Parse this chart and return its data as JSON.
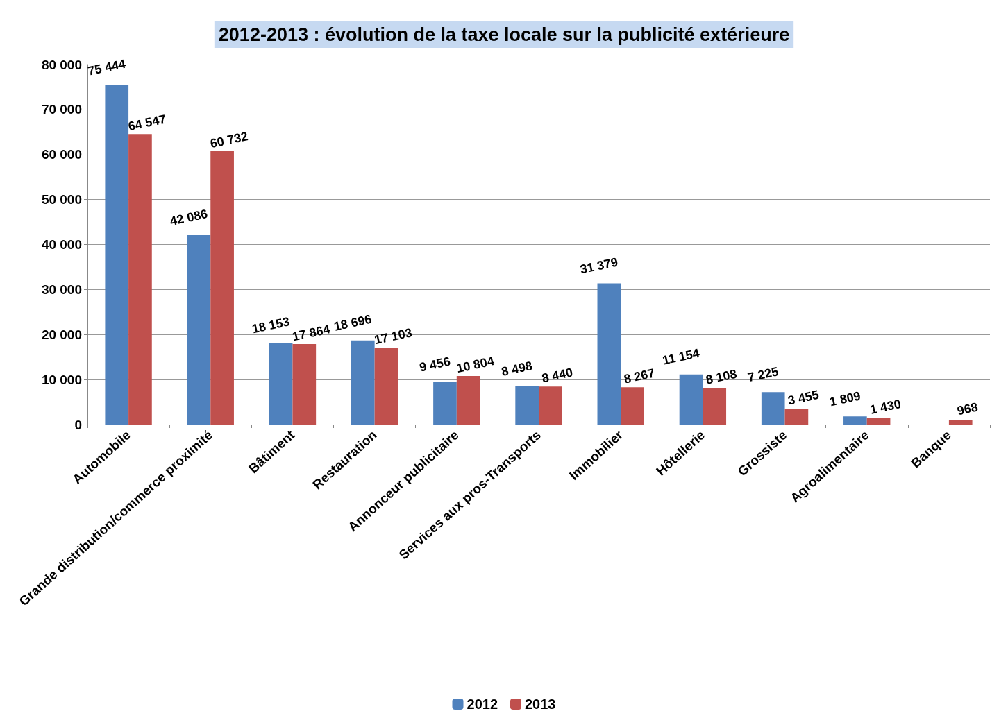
{
  "chart_data": {
    "type": "bar",
    "title": "2012-2013 : évolution de la taxe locale sur la publicité extérieure",
    "categories": [
      "Automobile",
      "Grande distribution/commerce proximité",
      "Bâtiment",
      "Restauration",
      "Annonceur publicitaire",
      "Services aux pros-Transports",
      "Immobilier",
      "Hôtellerie",
      "Grossiste",
      "Agroalimentaire",
      "Banque"
    ],
    "series": [
      {
        "name": "2012",
        "color": "#4f81bd",
        "values": [
          75444,
          42086,
          18153,
          18696,
          9456,
          8498,
          31379,
          11154,
          7225,
          1809,
          null
        ],
        "value_labels": [
          "75 444",
          "42 086",
          "18 153",
          "18 696",
          "9 456",
          "8 498",
          "31 379",
          "11 154",
          "7 225",
          "1 809",
          null
        ]
      },
      {
        "name": "2013",
        "color": "#c0504d",
        "values": [
          64547,
          60732,
          17864,
          17103,
          10804,
          8440,
          8267,
          8108,
          3455,
          1430,
          968
        ],
        "value_labels": [
          "64 547",
          "60 732",
          "17 864",
          "17 103",
          "10 804",
          "8 440",
          "8 267",
          "8 108",
          "3 455",
          "1 430",
          "968"
        ]
      }
    ],
    "ylim": [
      0,
      80000
    ],
    "yticks": [
      {
        "value": 0,
        "label": "0"
      },
      {
        "value": 10000,
        "label": "10 000"
      },
      {
        "value": 20000,
        "label": "20 000"
      },
      {
        "value": 30000,
        "label": "30 000"
      },
      {
        "value": 40000,
        "label": "40 000"
      },
      {
        "value": 50000,
        "label": "50 000"
      },
      {
        "value": 60000,
        "label": "60 000"
      },
      {
        "value": 70000,
        "label": "70 000"
      },
      {
        "value": 80000,
        "label": "80 000"
      }
    ],
    "grid": "y",
    "legend": "bottom"
  }
}
